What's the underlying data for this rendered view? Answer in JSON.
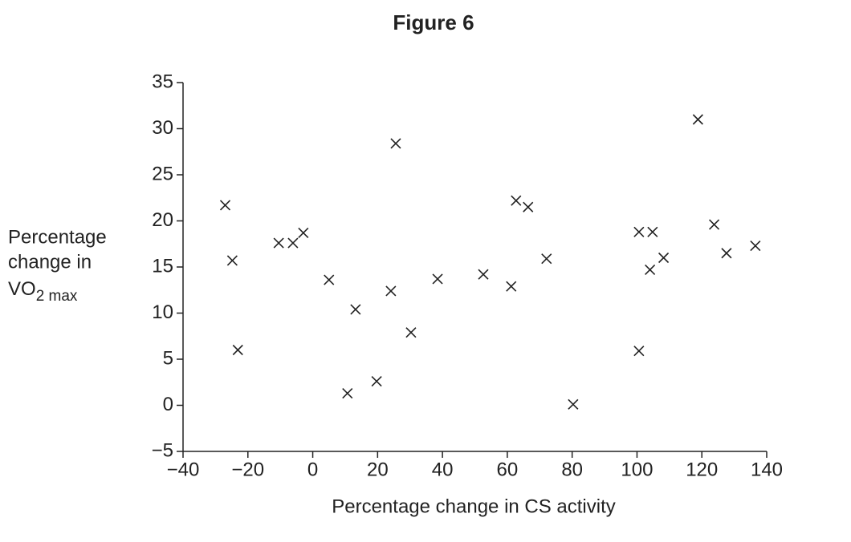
{
  "chart_data": {
    "type": "scatter",
    "title": "Figure 6",
    "xlabel": "Percentage change in CS activity",
    "ylabel": {
      "lines": [
        "Percentage",
        "change in"
      ],
      "last_line": "VO",
      "subscript": "2 max"
    },
    "marker": "x",
    "color": "#222222",
    "x": [
      -27,
      -24.8,
      -23.1,
      -10.5,
      -6.1,
      -2.9,
      5,
      13.2,
      10.7,
      19.7,
      24.1,
      25.6,
      30.3,
      38.5,
      52.6,
      61.2,
      62.7,
      66.4,
      72.1,
      80.3,
      100.6,
      100.6,
      104.8,
      104,
      108.2,
      118.8,
      123.8,
      127.6,
      136.5
    ],
    "values": [
      21.7,
      15.7,
      6,
      17.6,
      17.6,
      18.7,
      13.6,
      10.4,
      1.3,
      2.6,
      12.4,
      28.4,
      7.9,
      13.7,
      14.2,
      12.9,
      22.2,
      21.5,
      15.9,
      0.1,
      18.8,
      5.9,
      18.8,
      14.7,
      16,
      31,
      19.6,
      16.5,
      17.3
    ],
    "xlim": [
      -40,
      140
    ],
    "xticks": [
      {
        "value": -40,
        "label": "−40"
      },
      {
        "value": -20,
        "label": "−20"
      },
      0,
      20,
      40,
      60,
      80,
      100,
      120,
      140
    ],
    "ylim": [
      -5,
      35
    ],
    "yticks": [
      {
        "value": -5,
        "label": "−5"
      },
      0,
      5,
      10,
      15,
      20,
      25,
      30,
      35
    ]
  }
}
